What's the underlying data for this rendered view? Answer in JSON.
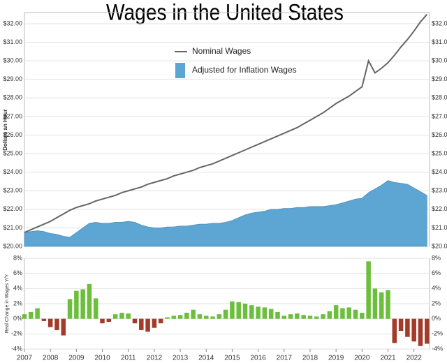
{
  "chart_data": [
    {
      "type": "line",
      "title": "Wages in the United States",
      "y_label": "Dollars an Hour",
      "grid": true,
      "xlim": [
        2007,
        2022.6
      ],
      "x": [
        2007,
        2007.25,
        2007.5,
        2007.75,
        2008,
        2008.25,
        2008.5,
        2008.75,
        2009,
        2009.25,
        2009.5,
        2009.75,
        2010,
        2010.25,
        2010.5,
        2010.75,
        2011,
        2011.25,
        2011.5,
        2011.75,
        2012,
        2012.25,
        2012.5,
        2012.75,
        2013,
        2013.25,
        2013.5,
        2013.75,
        2014,
        2014.25,
        2014.5,
        2014.75,
        2015,
        2015.25,
        2015.5,
        2015.75,
        2016,
        2016.25,
        2016.5,
        2016.75,
        2017,
        2017.25,
        2017.5,
        2017.75,
        2018,
        2018.25,
        2018.5,
        2018.75,
        2019,
        2019.25,
        2019.5,
        2019.75,
        2020,
        2020.25,
        2020.5,
        2020.75,
        2021,
        2021.25,
        2021.5,
        2021.75,
        2022,
        2022.25,
        2022.5
      ],
      "ylim": [
        20,
        32.6
      ],
      "yticks": [
        {
          "value": 20,
          "label": "$20.00"
        },
        {
          "value": 21,
          "label": "$21.00"
        },
        {
          "value": 22,
          "label": "$22.00"
        },
        {
          "value": 23,
          "label": "$23.00"
        },
        {
          "value": 24,
          "label": "$24.00"
        },
        {
          "value": 25,
          "label": "$25.00"
        },
        {
          "value": 26,
          "label": "$26.00"
        },
        {
          "value": 27,
          "label": "$27.00"
        },
        {
          "value": 28,
          "label": "$28.00"
        },
        {
          "value": 29,
          "label": "$29.00"
        },
        {
          "value": 30,
          "label": "$30.00"
        },
        {
          "value": 31,
          "label": "$31.00"
        },
        {
          "value": 32,
          "label": "$32.00"
        }
      ],
      "series": [
        {
          "name": "Adjusted for Inflation Wages",
          "type": "area",
          "color": "#5da5d2",
          "values": [
            20.75,
            20.8,
            20.85,
            20.8,
            20.7,
            20.65,
            20.55,
            20.5,
            20.75,
            21.0,
            21.25,
            21.3,
            21.25,
            21.25,
            21.3,
            21.3,
            21.35,
            21.3,
            21.15,
            21.05,
            21.0,
            21.0,
            21.05,
            21.05,
            21.1,
            21.1,
            21.15,
            21.2,
            21.2,
            21.25,
            21.25,
            21.3,
            21.4,
            21.55,
            21.7,
            21.8,
            21.85,
            21.9,
            22.0,
            22.0,
            22.05,
            22.05,
            22.1,
            22.1,
            22.15,
            22.15,
            22.15,
            22.2,
            22.25,
            22.35,
            22.45,
            22.55,
            22.6,
            22.9,
            23.1,
            23.3,
            23.55,
            23.45,
            23.4,
            23.35,
            23.15,
            22.95,
            22.75
          ]
        },
        {
          "name": "Nominal Wages",
          "type": "line",
          "color": "#666666",
          "values": [
            20.75,
            20.9,
            21.05,
            21.2,
            21.35,
            21.55,
            21.75,
            21.95,
            22.1,
            22.2,
            22.3,
            22.45,
            22.55,
            22.65,
            22.75,
            22.9,
            23.0,
            23.1,
            23.2,
            23.35,
            23.45,
            23.55,
            23.65,
            23.8,
            23.9,
            24.0,
            24.1,
            24.25,
            24.35,
            24.45,
            24.6,
            24.75,
            24.9,
            25.05,
            25.2,
            25.35,
            25.5,
            25.65,
            25.8,
            25.95,
            26.1,
            26.25,
            26.4,
            26.6,
            26.8,
            27.0,
            27.2,
            27.45,
            27.7,
            27.9,
            28.1,
            28.35,
            28.6,
            30.0,
            29.35,
            29.6,
            29.9,
            30.3,
            30.75,
            31.15,
            31.6,
            32.1,
            32.5
          ]
        }
      ]
    },
    {
      "type": "bar",
      "y_label": "Real Change in Wages Y/Y",
      "positive_color": "#6cbf3c",
      "negative_color": "#a33b2a",
      "xlim": [
        2007,
        2022.6
      ],
      "xticks": [
        2007,
        2008,
        2009,
        2010,
        2011,
        2012,
        2013,
        2014,
        2015,
        2016,
        2017,
        2018,
        2019,
        2020,
        2021,
        2022
      ],
      "x": [
        2007,
        2007.25,
        2007.5,
        2007.75,
        2008,
        2008.25,
        2008.5,
        2008.75,
        2009,
        2009.25,
        2009.5,
        2009.75,
        2010,
        2010.25,
        2010.5,
        2010.75,
        2011,
        2011.25,
        2011.5,
        2011.75,
        2012,
        2012.25,
        2012.5,
        2012.75,
        2013,
        2013.25,
        2013.5,
        2013.75,
        2014,
        2014.25,
        2014.5,
        2014.75,
        2015,
        2015.25,
        2015.5,
        2015.75,
        2016,
        2016.25,
        2016.5,
        2016.75,
        2017,
        2017.25,
        2017.5,
        2017.75,
        2018,
        2018.25,
        2018.5,
        2018.75,
        2019,
        2019.25,
        2019.5,
        2019.75,
        2020,
        2020.25,
        2020.5,
        2020.75,
        2021,
        2021.25,
        2021.5,
        2021.75,
        2022,
        2022.25,
        2022.5
      ],
      "ylim": [
        -4,
        8
      ],
      "yticks": [
        {
          "value": -4,
          "label": "-4%"
        },
        {
          "value": -2,
          "label": "-2%"
        },
        {
          "value": 0,
          "label": "0%"
        },
        {
          "value": 2,
          "label": "2%"
        },
        {
          "value": 4,
          "label": "4%"
        },
        {
          "value": 6,
          "label": "6%"
        },
        {
          "value": 8,
          "label": "8%"
        }
      ],
      "values": [
        0.6,
        0.9,
        1.4,
        -0.3,
        -1.1,
        -1.5,
        -2.2,
        2.6,
        3.7,
        3.9,
        4.6,
        2.7,
        -0.6,
        -0.4,
        0.6,
        0.8,
        0.7,
        -0.6,
        -1.5,
        -1.7,
        -1.2,
        -0.6,
        0.2,
        0.4,
        0.5,
        0.8,
        1.2,
        0.6,
        0.4,
        0.3,
        0.6,
        1.2,
        2.3,
        2.2,
        2.0,
        1.8,
        1.6,
        1.5,
        1.3,
        0.9,
        0.4,
        0.6,
        0.7,
        0.5,
        0.4,
        0.3,
        0.6,
        1.0,
        1.8,
        1.4,
        1.5,
        1.2,
        0.8,
        7.6,
        4.0,
        3.5,
        3.8,
        -3.2,
        -1.6,
        -2.4,
        -3.0,
        -3.6,
        -3.3
      ]
    }
  ]
}
